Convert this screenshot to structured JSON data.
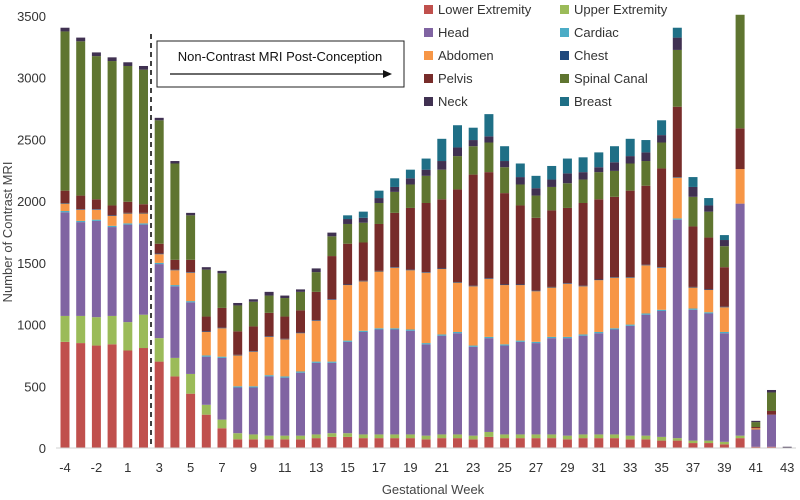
{
  "chart_data": {
    "type": "bar",
    "stacked": true,
    "title": "",
    "xlabel": "Gestational Week",
    "ylabel": "Number of Contrast MRI",
    "ylim": [
      0,
      3500
    ],
    "yticks": [
      0,
      500,
      1000,
      1500,
      2000,
      2500,
      3000,
      3500
    ],
    "grid": false,
    "legend_position": "top-right",
    "categories": [
      "-4",
      "-3",
      "-2",
      "-1",
      "1",
      "2",
      "3",
      "4",
      "5",
      "6",
      "7",
      "8",
      "9",
      "10",
      "11",
      "12",
      "13",
      "14",
      "15",
      "16",
      "17",
      "18",
      "19",
      "20",
      "21",
      "22",
      "23",
      "24",
      "25",
      "26",
      "27",
      "28",
      "29",
      "30",
      "31",
      "32",
      "33",
      "34",
      "35",
      "36",
      "37",
      "38",
      "39",
      "40",
      "41",
      "42",
      "43"
    ],
    "xtick_labels_shown": [
      "-4",
      "-2",
      "1",
      "3",
      "5",
      "7",
      "9",
      "11",
      "13",
      "15",
      "17",
      "19",
      "21",
      "23",
      "25",
      "27",
      "29",
      "31",
      "33",
      "35",
      "37",
      "39",
      "41",
      "43"
    ],
    "annotation": {
      "text": "Non-Contrast MRI Post-Conception",
      "marker": "dashed vertical line between week 2 and week 3",
      "arrow": "right"
    },
    "series": [
      {
        "name": "Lower Extremity",
        "color": "#c0504d",
        "values": [
          860,
          850,
          830,
          840,
          790,
          810,
          700,
          580,
          440,
          270,
          160,
          70,
          70,
          70,
          70,
          70,
          80,
          90,
          90,
          80,
          80,
          80,
          80,
          70,
          80,
          80,
          70,
          90,
          80,
          80,
          80,
          80,
          70,
          80,
          80,
          80,
          70,
          70,
          60,
          60,
          40,
          40,
          30,
          80,
          10,
          10,
          0
        ]
      },
      {
        "name": "Upper Extremity",
        "color": "#9bbb59",
        "values": [
          210,
          220,
          230,
          230,
          230,
          270,
          190,
          150,
          160,
          80,
          70,
          50,
          40,
          30,
          30,
          30,
          30,
          30,
          30,
          30,
          30,
          30,
          30,
          30,
          30,
          30,
          30,
          40,
          30,
          30,
          30,
          30,
          30,
          30,
          30,
          30,
          30,
          30,
          30,
          20,
          20,
          20,
          20,
          20,
          0,
          0,
          0
        ]
      },
      {
        "name": "Head",
        "color": "#8064a2",
        "values": [
          840,
          760,
          780,
          720,
          790,
          730,
          600,
          580,
          580,
          390,
          500,
          370,
          380,
          480,
          470,
          510,
          580,
          570,
          740,
          830,
          850,
          850,
          840,
          740,
          800,
          820,
          720,
          760,
          720,
          750,
          740,
          780,
          790,
          800,
          820,
          850,
          890,
          980,
          1020,
          1770,
          1060,
          1030,
          880,
          1880,
          140,
          260,
          0
        ]
      },
      {
        "name": "Cardiac",
        "color": "#4bacc6",
        "values": [
          10,
          10,
          10,
          10,
          10,
          10,
          10,
          10,
          10,
          10,
          10,
          10,
          10,
          10,
          10,
          10,
          10,
          10,
          10,
          10,
          10,
          10,
          10,
          10,
          10,
          10,
          10,
          10,
          10,
          10,
          10,
          10,
          10,
          10,
          10,
          10,
          10,
          10,
          10,
          10,
          10,
          10,
          10,
          0,
          0,
          0,
          0
        ]
      },
      {
        "name": "Abdomen",
        "color": "#f79646",
        "values": [
          60,
          90,
          80,
          80,
          80,
          80,
          70,
          120,
          230,
          190,
          230,
          250,
          280,
          310,
          300,
          310,
          330,
          500,
          450,
          400,
          460,
          490,
          480,
          570,
          530,
          400,
          480,
          470,
          480,
          450,
          410,
          400,
          430,
          390,
          420,
          410,
          380,
          390,
          340,
          330,
          170,
          180,
          200,
          280,
          10,
          0,
          0
        ]
      },
      {
        "name": "Chest",
        "color": "#1f497d",
        "values": [
          5,
          5,
          5,
          5,
          5,
          5,
          5,
          5,
          5,
          5,
          5,
          5,
          5,
          5,
          5,
          5,
          5,
          5,
          5,
          5,
          5,
          5,
          5,
          5,
          5,
          5,
          5,
          5,
          5,
          5,
          5,
          5,
          5,
          5,
          5,
          5,
          5,
          5,
          5,
          5,
          5,
          5,
          5,
          0,
          0,
          0,
          0
        ]
      },
      {
        "name": "Pelvis",
        "color": "#772c2a",
        "values": [
          100,
          110,
          80,
          80,
          90,
          70,
          80,
          80,
          100,
          120,
          160,
          190,
          200,
          190,
          180,
          180,
          230,
          350,
          330,
          310,
          380,
          440,
          500,
          560,
          560,
          750,
          900,
          860,
          740,
          640,
          590,
          620,
          610,
          670,
          650,
          650,
          700,
          640,
          800,
          570,
          490,
          420,
          320,
          330,
          10,
          30,
          0
        ]
      },
      {
        "name": "Spinal Canal",
        "color": "#5f7530",
        "values": [
          1290,
          1250,
          1160,
          1170,
          1100,
          1090,
          1000,
          780,
          360,
          380,
          280,
          210,
          200,
          140,
          150,
          150,
          160,
          160,
          160,
          160,
          170,
          170,
          190,
          220,
          240,
          270,
          230,
          240,
          210,
          170,
          180,
          190,
          200,
          190,
          220,
          210,
          220,
          200,
          210,
          460,
          240,
          210,
          170,
          920,
          40,
          150,
          0
        ]
      },
      {
        "name": "Neck",
        "color": "#403151",
        "values": [
          30,
          30,
          30,
          30,
          30,
          30,
          20,
          20,
          20,
          20,
          20,
          20,
          20,
          30,
          20,
          20,
          30,
          30,
          40,
          40,
          40,
          40,
          50,
          50,
          70,
          70,
          50,
          50,
          50,
          60,
          60,
          60,
          80,
          60,
          40,
          70,
          60,
          70,
          60,
          100,
          80,
          50,
          50,
          0,
          10,
          20,
          10
        ]
      },
      {
        "name": "Breast",
        "color": "#1f6f86",
        "values": [
          0,
          0,
          0,
          0,
          0,
          0,
          0,
          0,
          0,
          0,
          0,
          0,
          0,
          0,
          0,
          0,
          0,
          0,
          30,
          50,
          60,
          70,
          70,
          90,
          180,
          180,
          100,
          180,
          120,
          110,
          100,
          110,
          120,
          120,
          120,
          130,
          140,
          100,
          120,
          80,
          80,
          60,
          40,
          0,
          0,
          0,
          0
        ]
      }
    ]
  }
}
